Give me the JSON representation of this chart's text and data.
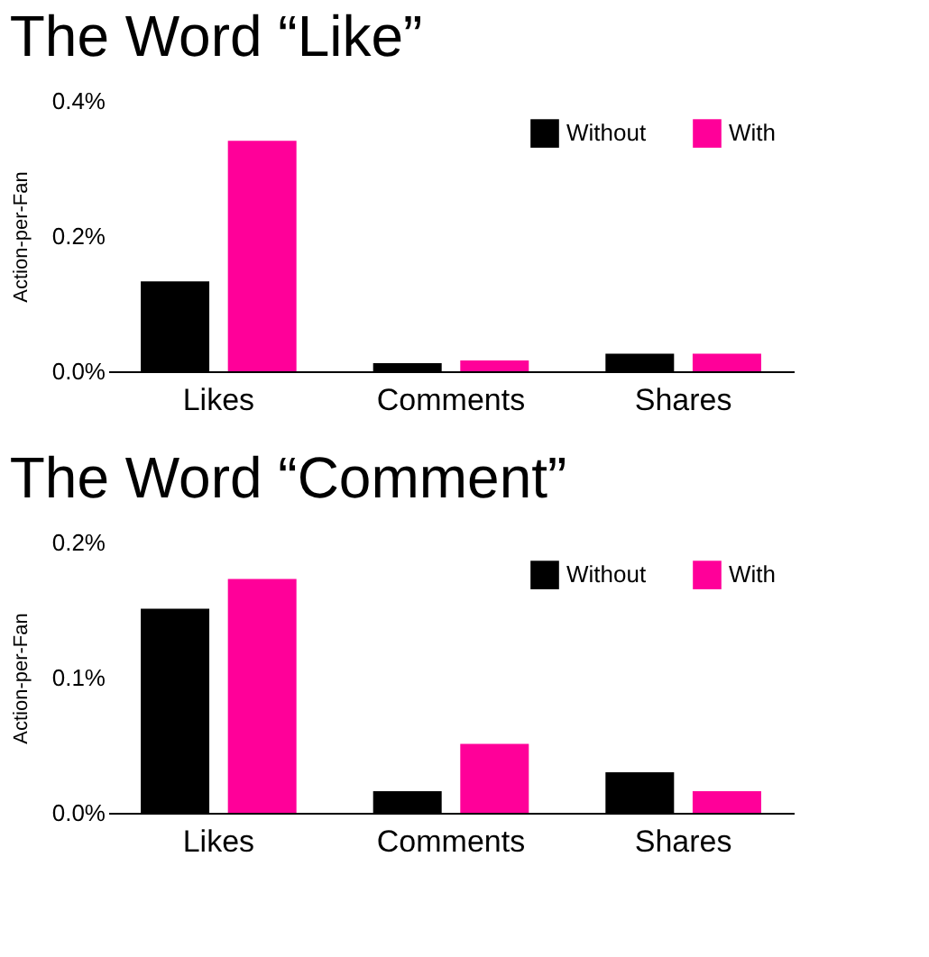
{
  "chart_data": [
    {
      "type": "bar",
      "title": "The Word  “Like”",
      "ylabel": "Action-per-Fan",
      "categories": [
        "Likes",
        "Comments",
        "Shares"
      ],
      "series": [
        {
          "name": "Without",
          "color": "#000000",
          "values": [
            0.133,
            0.012,
            0.026
          ]
        },
        {
          "name": "With",
          "color": "#ff0099",
          "values": [
            0.341,
            0.016,
            0.026
          ]
        }
      ],
      "ylim": [
        0,
        0.4
      ],
      "yticks": [
        {
          "value": 0,
          "label": "0.0%"
        },
        {
          "value": 0.2,
          "label": "0.2%"
        },
        {
          "value": 0.4,
          "label": "0.4%"
        }
      ],
      "grid": false,
      "legend": "top right"
    },
    {
      "type": "bar",
      "title": "The Word  “Comment”",
      "ylabel": "Action-per-Fan",
      "categories": [
        "Likes",
        "Comments",
        "Shares"
      ],
      "series": [
        {
          "name": "Without",
          "color": "#000000",
          "values": [
            0.151,
            0.016,
            0.03
          ]
        },
        {
          "name": "With",
          "color": "#ff0099",
          "values": [
            0.173,
            0.051,
            0.016
          ]
        }
      ],
      "ylim": [
        0,
        0.2
      ],
      "yticks": [
        {
          "value": 0,
          "label": "0.0%"
        },
        {
          "value": 0.1,
          "label": "0.1%"
        },
        {
          "value": 0.2,
          "label": "0.2%"
        }
      ],
      "grid": false,
      "legend": "top right"
    }
  ]
}
